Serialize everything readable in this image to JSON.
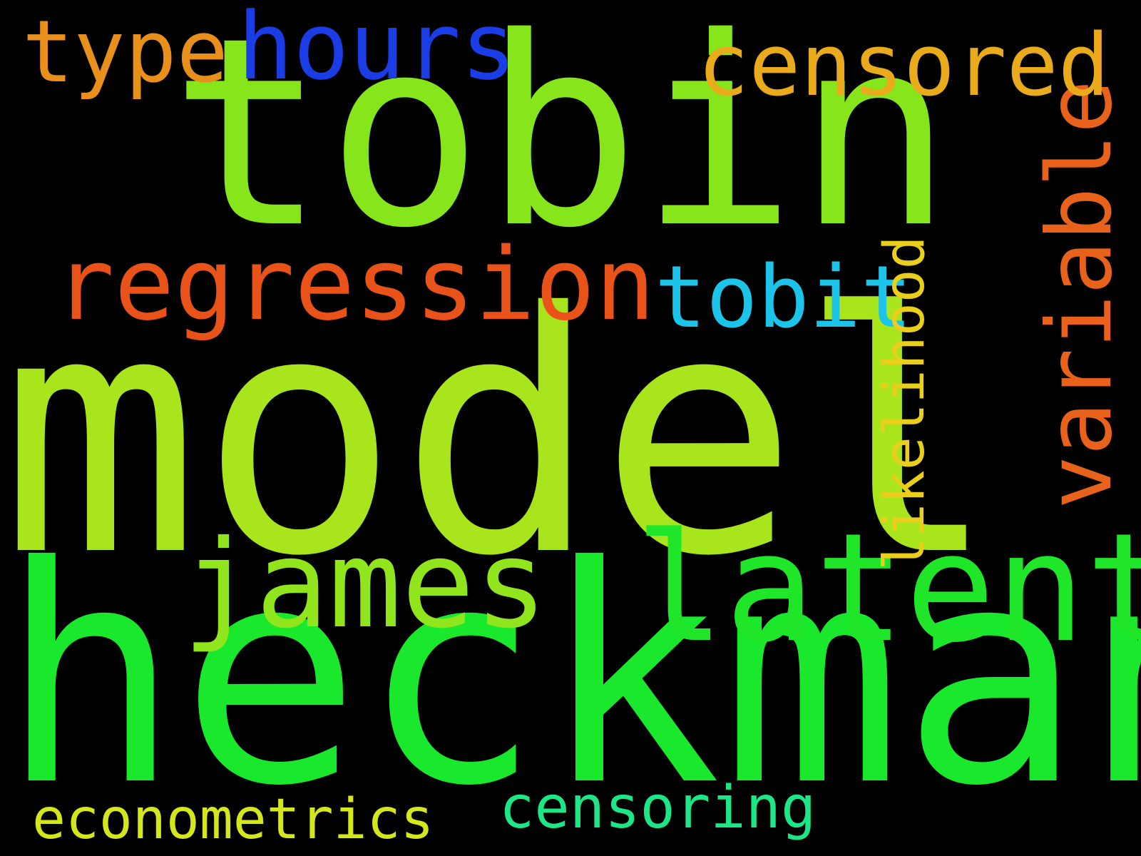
{
  "background": "#000000",
  "words": [
    {
      "id": "model",
      "text": "model",
      "color": "#a8e51c"
    },
    {
      "id": "heckman",
      "text": "heckman",
      "color": "#1ae82c"
    },
    {
      "id": "tobin",
      "text": "tobin",
      "color": "#86e61b"
    },
    {
      "id": "latent",
      "text": "latent",
      "color": "#1fe628"
    },
    {
      "id": "regression",
      "text": "regression",
      "color": "#e9531a"
    },
    {
      "id": "james",
      "text": "james",
      "color": "#91e51c"
    },
    {
      "id": "variable",
      "text": "variable",
      "color": "#e8621b"
    },
    {
      "id": "censored",
      "text": "censored",
      "color": "#e9ab1c"
    },
    {
      "id": "hours",
      "text": "hours",
      "color": "#1b3de6"
    },
    {
      "id": "type",
      "text": "type",
      "color": "#e9901c"
    },
    {
      "id": "tobit",
      "text": "tobit",
      "color": "#1dc4e9"
    },
    {
      "id": "likelihood",
      "text": "likelihood",
      "color": "#e9cf1c"
    },
    {
      "id": "econometrics",
      "text": "econometrics",
      "color": "#d4e61c"
    },
    {
      "id": "censoring",
      "text": "censoring",
      "color": "#1ce686"
    }
  ]
}
